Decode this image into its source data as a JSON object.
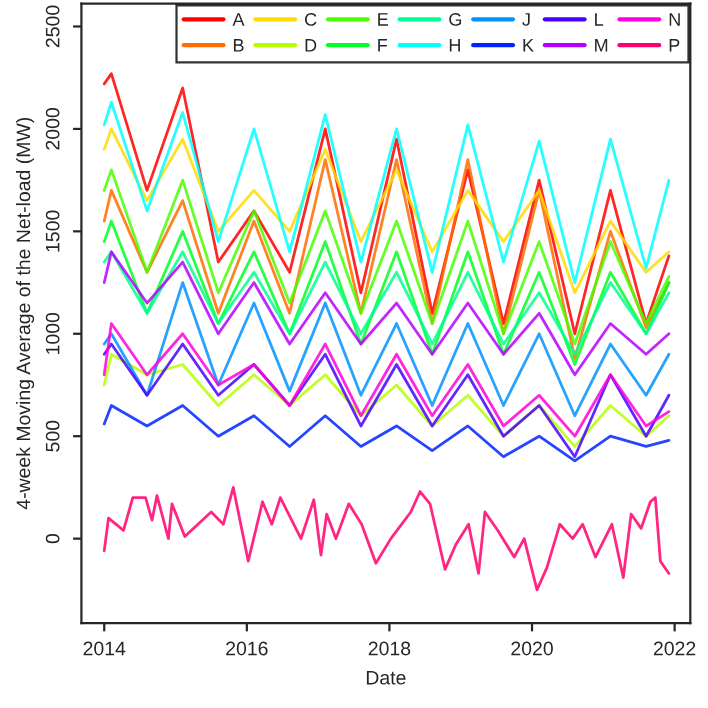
{
  "chart_data": {
    "type": "line",
    "xlabel": "Date",
    "ylabel": "4-week Moving Average of the Net-load (MW)",
    "x": [
      2014.0,
      2014.1,
      2014.6,
      2015.1,
      2015.6,
      2016.1,
      2016.6,
      2017.1,
      2017.6,
      2018.1,
      2018.6,
      2019.1,
      2019.6,
      2020.1,
      2020.6,
      2021.1,
      2021.6,
      2021.92
    ],
    "xlim": [
      2013.68,
      2022.22
    ],
    "xticks": [
      2014,
      2016,
      2018,
      2020,
      2022
    ],
    "ylim": [
      -412,
      2612
    ],
    "yticks": [
      0,
      500,
      1000,
      1500,
      2000,
      2500
    ],
    "grid": false,
    "legend": "top right",
    "marker": "none",
    "line_style": "solid",
    "series": [
      {
        "name": "A",
        "color": "#ff0000",
        "values": [
          2220,
          2270,
          1700,
          2200,
          1350,
          1600,
          1300,
          2000,
          1200,
          1950,
          1100,
          1800,
          1050,
          1750,
          1000,
          1700,
          1050,
          1380
        ]
      },
      {
        "name": "B",
        "color": "#ff6d00",
        "values": [
          1550,
          1700,
          1300,
          1650,
          1100,
          1550,
          1100,
          1850,
          1100,
          1850,
          1050,
          1850,
          1000,
          1700,
          880,
          1500,
          1030,
          1250
        ]
      },
      {
        "name": "C",
        "color": "#ffdb00",
        "values": [
          1900,
          2000,
          1650,
          1950,
          1500,
          1700,
          1500,
          1900,
          1450,
          1800,
          1400,
          1700,
          1450,
          1700,
          1200,
          1550,
          1300,
          1400
        ]
      },
      {
        "name": "D",
        "color": "#b6ff00",
        "values": [
          750,
          900,
          800,
          850,
          650,
          800,
          650,
          800,
          600,
          750,
          550,
          700,
          500,
          650,
          450,
          650,
          500,
          600
        ]
      },
      {
        "name": "E",
        "color": "#49ff00",
        "values": [
          1700,
          1800,
          1300,
          1750,
          1200,
          1600,
          1150,
          1600,
          1100,
          1550,
          1050,
          1550,
          1000,
          1450,
          950,
          1450,
          1050,
          1280
        ]
      },
      {
        "name": "F",
        "color": "#00ff24",
        "values": [
          1450,
          1550,
          1100,
          1500,
          1050,
          1400,
          1000,
          1450,
          950,
          1400,
          900,
          1400,
          900,
          1300,
          850,
          1300,
          1000,
          1250
        ]
      },
      {
        "name": "G",
        "color": "#00ff92",
        "values": [
          1350,
          1400,
          1100,
          1400,
          1050,
          1300,
          1000,
          1350,
          1000,
          1300,
          950,
          1300,
          950,
          1200,
          900,
          1250,
          1000,
          1200
        ]
      },
      {
        "name": "H",
        "color": "#00ffff",
        "values": [
          2020,
          2130,
          1600,
          2080,
          1450,
          2000,
          1400,
          2070,
          1350,
          2000,
          1300,
          2020,
          1350,
          1940,
          1250,
          1950,
          1320,
          1750
        ]
      },
      {
        "name": "J",
        "color": "#0092ff",
        "values": [
          950,
          1000,
          700,
          1250,
          750,
          1150,
          720,
          1150,
          700,
          1050,
          650,
          1050,
          650,
          1000,
          600,
          950,
          700,
          900
        ]
      },
      {
        "name": "K",
        "color": "#0024ff",
        "values": [
          560,
          650,
          550,
          650,
          500,
          600,
          450,
          600,
          450,
          550,
          430,
          550,
          400,
          500,
          380,
          500,
          450,
          480
        ]
      },
      {
        "name": "L",
        "color": "#4900ff",
        "values": [
          900,
          950,
          700,
          950,
          700,
          850,
          650,
          900,
          550,
          850,
          550,
          800,
          500,
          650,
          400,
          800,
          500,
          700
        ]
      },
      {
        "name": "M",
        "color": "#b600ff",
        "values": [
          1250,
          1400,
          1150,
          1350,
          1000,
          1250,
          950,
          1200,
          950,
          1150,
          900,
          1150,
          900,
          1100,
          800,
          1050,
          900,
          1000
        ]
      },
      {
        "name": "N",
        "color": "#ff00db",
        "values": [
          800,
          1050,
          800,
          1000,
          750,
          850,
          650,
          950,
          600,
          900,
          600,
          850,
          550,
          700,
          500,
          800,
          550,
          620
        ]
      },
      {
        "name": "P",
        "color": "#ff006d",
        "x": [
          2014.0,
          2014.06,
          2014.27,
          2014.4,
          2014.58,
          2014.67,
          2014.74,
          2014.9,
          2014.95,
          2015.13,
          2015.5,
          2015.67,
          2015.81,
          2016.02,
          2016.22,
          2016.35,
          2016.47,
          2016.76,
          2016.94,
          2017.04,
          2017.12,
          2017.25,
          2017.43,
          2017.61,
          2017.81,
          2018.02,
          2018.3,
          2018.43,
          2018.57,
          2018.78,
          2018.93,
          2019.11,
          2019.25,
          2019.34,
          2019.52,
          2019.75,
          2019.89,
          2020.07,
          2020.21,
          2020.39,
          2020.57,
          2020.71,
          2020.89,
          2021.12,
          2021.28,
          2021.39,
          2021.53,
          2021.66,
          2021.73,
          2021.8,
          2021.92
        ],
        "values": [
          -60,
          100,
          40,
          200,
          200,
          90,
          210,
          0,
          170,
          10,
          130,
          70,
          250,
          -110,
          180,
          70,
          200,
          0,
          190,
          -80,
          120,
          0,
          170,
          70,
          -120,
          0,
          130,
          230,
          170,
          -150,
          -30,
          70,
          -170,
          130,
          40,
          -90,
          0,
          -250,
          -140,
          70,
          0,
          70,
          -90,
          70,
          -190,
          120,
          50,
          180,
          200,
          -110,
          -170
        ]
      }
    ]
  }
}
